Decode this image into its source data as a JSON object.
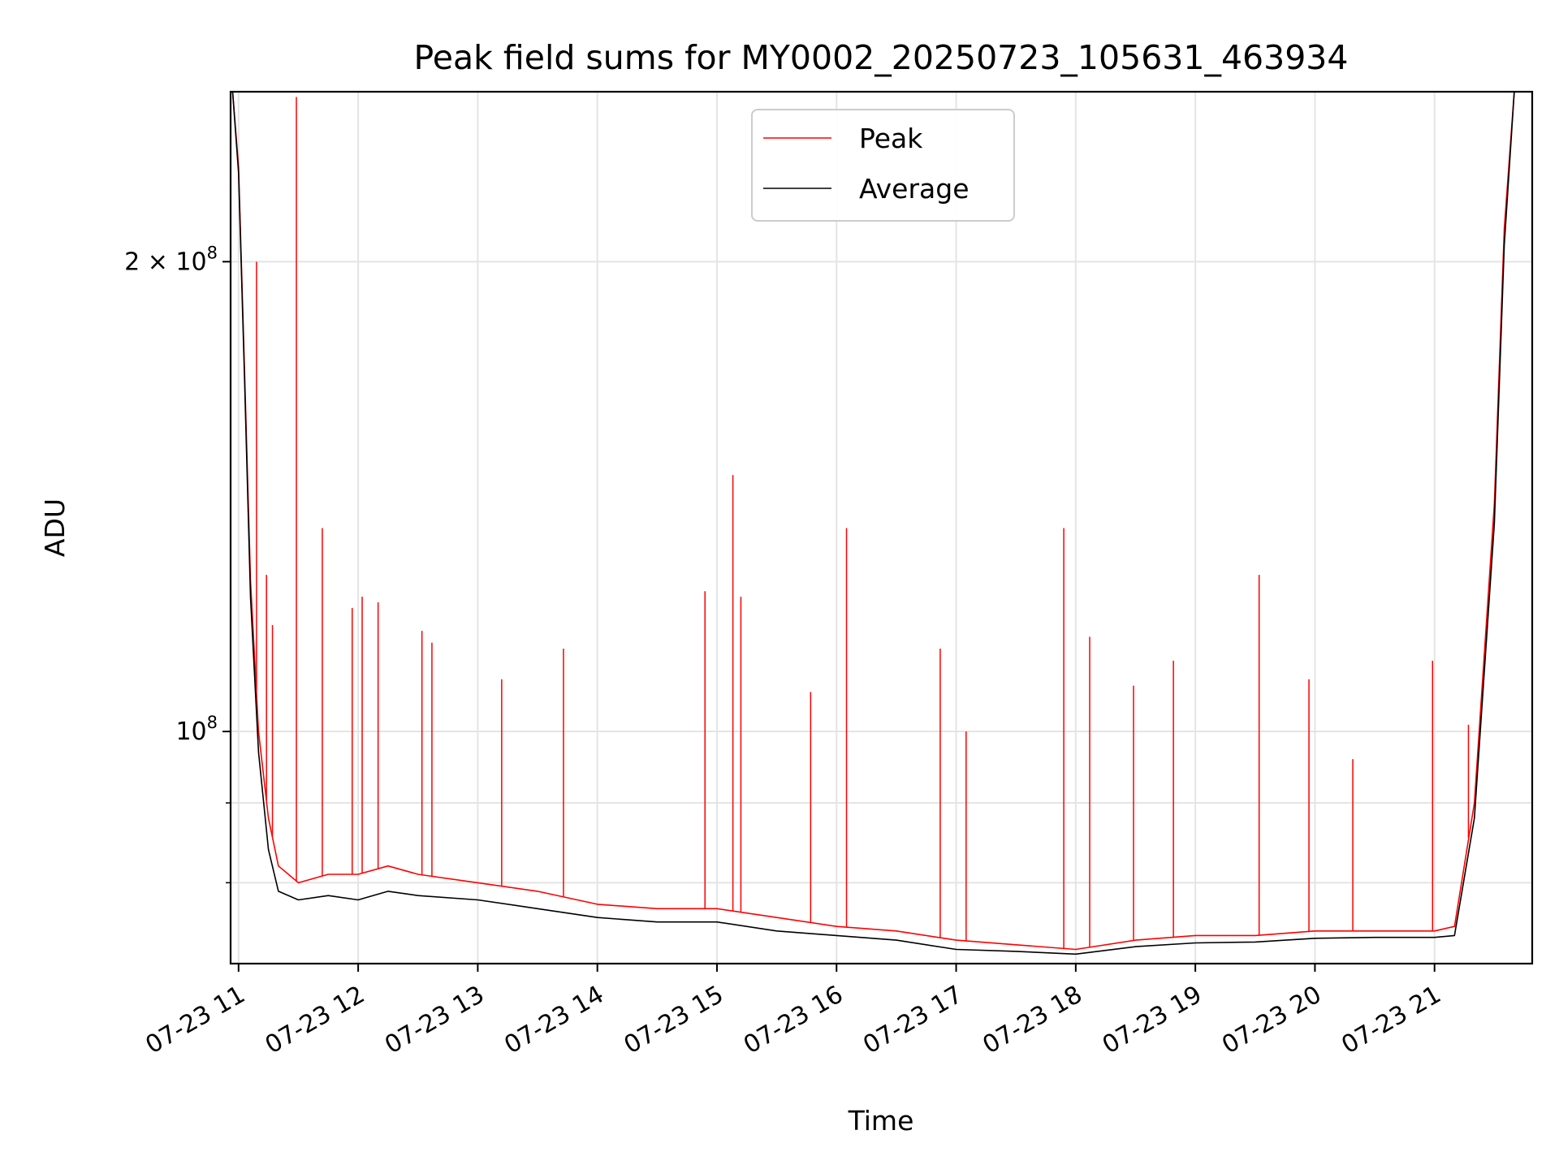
{
  "chart_data": {
    "type": "line",
    "title": "Peak field sums for MY0002_20250723_105631_463934",
    "xlabel": "Time",
    "ylabel": "ADU",
    "y_scale": "log",
    "grid": true,
    "legend_position": "top-center",
    "xlim": [
      "2025-07-23T10:56",
      "2025-07-23T21:49"
    ],
    "ylim": [
      71000000,
      257000000
    ],
    "x_ticks": [
      {
        "value": "2025-07-23T11:00",
        "label": "07-23 11"
      },
      {
        "value": "2025-07-23T12:00",
        "label": "07-23 12"
      },
      {
        "value": "2025-07-23T13:00",
        "label": "07-23 13"
      },
      {
        "value": "2025-07-23T14:00",
        "label": "07-23 14"
      },
      {
        "value": "2025-07-23T15:00",
        "label": "07-23 15"
      },
      {
        "value": "2025-07-23T16:00",
        "label": "07-23 16"
      },
      {
        "value": "2025-07-23T17:00",
        "label": "07-23 17"
      },
      {
        "value": "2025-07-23T18:00",
        "label": "07-23 18"
      },
      {
        "value": "2025-07-23T19:00",
        "label": "07-23 19"
      },
      {
        "value": "2025-07-23T20:00",
        "label": "07-23 20"
      },
      {
        "value": "2025-07-23T21:00",
        "label": "07-23 21"
      }
    ],
    "y_major_ticks": [
      {
        "value": 100000000,
        "base": "10",
        "exp": "8",
        "mantissa": ""
      },
      {
        "value": 200000000,
        "base": "10",
        "exp": "8",
        "mantissa": "2 × "
      }
    ],
    "y_minor_ticks": [
      80000000,
      90000000
    ],
    "series": [
      {
        "name": "Peak",
        "color": "#ff0000",
        "x": [
          "2025-07-23T10:57",
          "2025-07-23T11:00",
          "2025-07-23T11:03",
          "2025-07-23T11:06",
          "2025-07-23T11:10",
          "2025-07-23T11:15",
          "2025-07-23T11:20",
          "2025-07-23T11:30",
          "2025-07-23T11:45",
          "2025-07-23T12:00",
          "2025-07-23T12:15",
          "2025-07-23T12:30",
          "2025-07-23T13:00",
          "2025-07-23T13:30",
          "2025-07-23T14:00",
          "2025-07-23T14:30",
          "2025-07-23T15:00",
          "2025-07-23T15:30",
          "2025-07-23T16:00",
          "2025-07-23T16:30",
          "2025-07-23T17:00",
          "2025-07-23T17:30",
          "2025-07-23T18:00",
          "2025-07-23T18:30",
          "2025-07-23T19:00",
          "2025-07-23T19:30",
          "2025-07-23T20:00",
          "2025-07-23T20:30",
          "2025-07-23T21:00",
          "2025-07-23T21:10",
          "2025-07-23T21:20",
          "2025-07-23T21:30",
          "2025-07-23T21:35",
          "2025-07-23T21:40"
        ],
        "values": [
          257000000,
          230000000,
          170000000,
          125000000,
          100000000,
          88000000,
          82000000,
          80000000,
          81000000,
          81000000,
          82000000,
          81000000,
          80000000,
          79000000,
          77500000,
          77000000,
          77000000,
          76000000,
          75000000,
          74500000,
          73500000,
          73000000,
          72500000,
          73500000,
          74000000,
          74000000,
          74500000,
          74500000,
          74500000,
          75000000,
          90000000,
          140000000,
          210000000,
          257000000
        ]
      },
      {
        "name": "Average",
        "color": "#000000",
        "x": [
          "2025-07-23T10:57",
          "2025-07-23T11:00",
          "2025-07-23T11:03",
          "2025-07-23T11:06",
          "2025-07-23T11:10",
          "2025-07-23T11:15",
          "2025-07-23T11:20",
          "2025-07-23T11:30",
          "2025-07-23T11:45",
          "2025-07-23T12:00",
          "2025-07-23T12:15",
          "2025-07-23T12:30",
          "2025-07-23T13:00",
          "2025-07-23T13:30",
          "2025-07-23T14:00",
          "2025-07-23T14:30",
          "2025-07-23T15:00",
          "2025-07-23T15:30",
          "2025-07-23T16:00",
          "2025-07-23T16:30",
          "2025-07-23T17:00",
          "2025-07-23T17:30",
          "2025-07-23T18:00",
          "2025-07-23T18:30",
          "2025-07-23T19:00",
          "2025-07-23T19:30",
          "2025-07-23T20:00",
          "2025-07-23T20:30",
          "2025-07-23T21:00",
          "2025-07-23T21:10",
          "2025-07-23T21:20",
          "2025-07-23T21:30",
          "2025-07-23T21:35",
          "2025-07-23T21:40"
        ],
        "values": [
          257000000,
          228000000,
          168000000,
          122000000,
          97000000,
          84000000,
          79000000,
          78000000,
          78500000,
          78000000,
          79000000,
          78500000,
          78000000,
          77000000,
          76000000,
          75500000,
          75500000,
          74500000,
          74000000,
          73500000,
          72500000,
          72300000,
          72000000,
          72800000,
          73200000,
          73300000,
          73700000,
          73800000,
          73800000,
          74000000,
          88000000,
          136000000,
          205000000,
          257000000
        ]
      }
    ],
    "peak_spikes": [
      {
        "x": "2025-07-23T11:09",
        "y": 200000000
      },
      {
        "x": "2025-07-23T11:14",
        "y": 126000000
      },
      {
        "x": "2025-07-23T11:17",
        "y": 117000000
      },
      {
        "x": "2025-07-23T11:29",
        "y": 255000000
      },
      {
        "x": "2025-07-23T11:42",
        "y": 135000000
      },
      {
        "x": "2025-07-23T11:57",
        "y": 120000000
      },
      {
        "x": "2025-07-23T12:02",
        "y": 122000000
      },
      {
        "x": "2025-07-23T12:10",
        "y": 121000000
      },
      {
        "x": "2025-07-23T12:32",
        "y": 116000000
      },
      {
        "x": "2025-07-23T12:37",
        "y": 114000000
      },
      {
        "x": "2025-07-23T13:12",
        "y": 108000000
      },
      {
        "x": "2025-07-23T13:43",
        "y": 113000000
      },
      {
        "x": "2025-07-23T14:54",
        "y": 123000000
      },
      {
        "x": "2025-07-23T15:08",
        "y": 146000000
      },
      {
        "x": "2025-07-23T15:12",
        "y": 122000000
      },
      {
        "x": "2025-07-23T15:47",
        "y": 106000000
      },
      {
        "x": "2025-07-23T16:05",
        "y": 135000000
      },
      {
        "x": "2025-07-23T16:52",
        "y": 113000000
      },
      {
        "x": "2025-07-23T17:05",
        "y": 100000000
      },
      {
        "x": "2025-07-23T17:54",
        "y": 135000000
      },
      {
        "x": "2025-07-23T18:07",
        "y": 115000000
      },
      {
        "x": "2025-07-23T18:29",
        "y": 107000000
      },
      {
        "x": "2025-07-23T18:49",
        "y": 111000000
      },
      {
        "x": "2025-07-23T19:32",
        "y": 126000000
      },
      {
        "x": "2025-07-23T19:57",
        "y": 108000000
      },
      {
        "x": "2025-07-23T20:19",
        "y": 96000000
      },
      {
        "x": "2025-07-23T20:59",
        "y": 111000000
      },
      {
        "x": "2025-07-23T21:17",
        "y": 101000000
      }
    ]
  }
}
